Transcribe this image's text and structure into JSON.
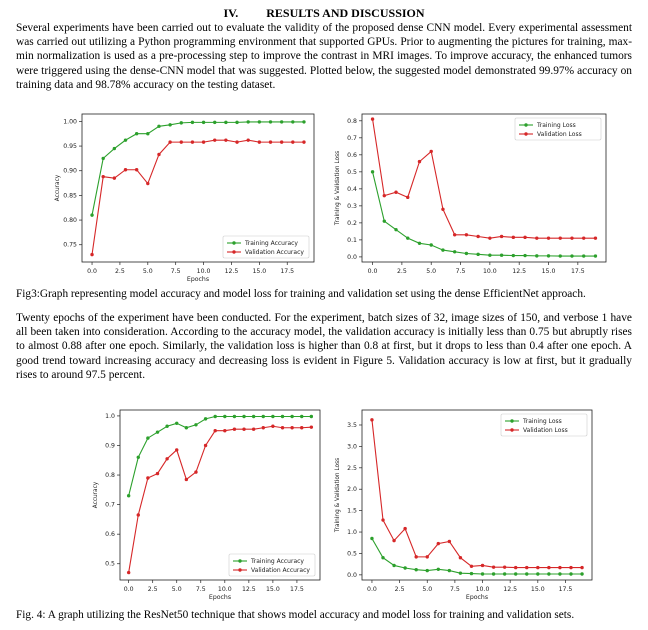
{
  "section": {
    "number": "IV.",
    "title": "RESULTS AND DISCUSSION"
  },
  "paragraph1": "Several experiments have been carried out to evaluate the validity of the proposed dense CNN model. Every experimental assessment was carried out utilizing a Python programming environment that supported GPUs. Prior to augmenting the pictures for training, max-min normalization is used as a pre-processing step to improve the contrast in MRI images. To improve accuracy, the enhanced tumors were triggered using the dense-CNN model that was suggested. Plotted below, the suggested model demonstrated 99.97% accuracy on training data and 98.78% accuracy on the testing dataset.",
  "caption1": "Fig3:Graph representing model accuracy and model loss for training and validation set using the dense EfficientNet approach.",
  "paragraph2": "Twenty epochs of the experiment have been conducted. For the experiment, batch sizes of 32, image sizes of 150, and verbose 1 have all been taken into consideration. According to the accuracy model, the validation accuracy is initially less than 0.75 but abruptly rises to almost 0.88 after one epoch. Similarly, the validation loss is higher than 0.8 at first, but it drops to less than 0.4 after one epoch. A good trend toward increasing accuracy and decreasing loss is evident in Figure 5. Validation accuracy is low at first, but it gradually rises to around 97.5 percent.",
  "caption2": "Fig. 4: A graph utilizing the ResNet50 technique that shows model accuracy and model loss for training and validation sets.",
  "colors": {
    "training": "#2ca02c",
    "validation": "#d62728"
  },
  "chart_data": [
    {
      "type": "line",
      "xlabel": "Epochs",
      "ylabel": "Accuracy",
      "xlim": [
        -0.9,
        19.9
      ],
      "ylim": [
        0.715,
        1.015
      ],
      "xticks": [
        0.0,
        2.5,
        5.0,
        7.5,
        10.0,
        12.5,
        15.0,
        17.5
      ],
      "yticks": [
        0.75,
        0.8,
        0.85,
        0.9,
        0.95,
        1.0
      ],
      "x": [
        0,
        1,
        2,
        3,
        4,
        5,
        6,
        7,
        8,
        9,
        10,
        11,
        12,
        13,
        14,
        15,
        16,
        17,
        18,
        19
      ],
      "series": [
        {
          "name": "Training Accuracy",
          "values": [
            0.81,
            0.925,
            0.945,
            0.962,
            0.975,
            0.975,
            0.99,
            0.993,
            0.997,
            0.998,
            0.998,
            0.998,
            0.998,
            0.998,
            0.999,
            0.999,
            0.999,
            0.999,
            0.999,
            0.999
          ]
        },
        {
          "name": "Validation Accuracy",
          "values": [
            0.73,
            0.888,
            0.885,
            0.902,
            0.902,
            0.874,
            0.933,
            0.958,
            0.958,
            0.958,
            0.958,
            0.962,
            0.962,
            0.958,
            0.962,
            0.958,
            0.958,
            0.958,
            0.958,
            0.958
          ]
        }
      ],
      "legend": "bottom-right",
      "grid": false
    },
    {
      "type": "line",
      "xlabel": "",
      "ylabel": "Training & Validation Loss",
      "xlim": [
        -0.9,
        19.9
      ],
      "ylim": [
        -0.03,
        0.84
      ],
      "xticks": [
        0.0,
        2.5,
        5.0,
        7.5,
        10.0,
        12.5,
        15.0,
        17.5
      ],
      "yticks": [
        0.0,
        0.1,
        0.2,
        0.3,
        0.4,
        0.5,
        0.6,
        0.7,
        0.8
      ],
      "x": [
        0,
        1,
        2,
        3,
        4,
        5,
        6,
        7,
        8,
        9,
        10,
        11,
        12,
        13,
        14,
        15,
        16,
        17,
        18,
        19
      ],
      "series": [
        {
          "name": "Training Loss",
          "values": [
            0.5,
            0.21,
            0.16,
            0.11,
            0.08,
            0.07,
            0.04,
            0.03,
            0.02,
            0.015,
            0.01,
            0.01,
            0.008,
            0.008,
            0.006,
            0.006,
            0.005,
            0.005,
            0.005,
            0.005
          ]
        },
        {
          "name": "Validation Loss",
          "values": [
            0.81,
            0.36,
            0.38,
            0.35,
            0.56,
            0.62,
            0.28,
            0.13,
            0.13,
            0.12,
            0.11,
            0.12,
            0.115,
            0.115,
            0.11,
            0.11,
            0.11,
            0.11,
            0.11,
            0.11
          ]
        }
      ],
      "legend": "top-right",
      "grid": false
    },
    {
      "type": "line",
      "xlabel": "Epochs",
      "ylabel": "Accuracy",
      "xlim": [
        -0.9,
        19.9
      ],
      "ylim": [
        0.445,
        1.02
      ],
      "xticks": [
        0.0,
        2.5,
        5.0,
        7.5,
        10.0,
        12.5,
        15.0,
        17.5
      ],
      "yticks": [
        0.5,
        0.6,
        0.7,
        0.8,
        0.9,
        1.0
      ],
      "x": [
        0,
        1,
        2,
        3,
        4,
        5,
        6,
        7,
        8,
        9,
        10,
        11,
        12,
        13,
        14,
        15,
        16,
        17,
        18,
        19
      ],
      "series": [
        {
          "name": "Training Accuracy",
          "values": [
            0.73,
            0.86,
            0.925,
            0.945,
            0.965,
            0.975,
            0.96,
            0.97,
            0.99,
            0.998,
            0.998,
            0.998,
            0.998,
            0.998,
            0.998,
            0.998,
            0.998,
            0.998,
            0.998,
            0.998
          ]
        },
        {
          "name": "Validation Accuracy",
          "values": [
            0.47,
            0.665,
            0.79,
            0.805,
            0.855,
            0.885,
            0.785,
            0.81,
            0.9,
            0.95,
            0.95,
            0.955,
            0.955,
            0.955,
            0.96,
            0.965,
            0.96,
            0.96,
            0.96,
            0.962
          ]
        }
      ],
      "legend": "bottom-right",
      "grid": false
    },
    {
      "type": "line",
      "xlabel": "Epochs",
      "ylabel": "Training & Validation Loss",
      "xlim": [
        -0.9,
        19.9
      ],
      "ylim": [
        -0.12,
        3.85
      ],
      "xticks": [
        0.0,
        2.5,
        5.0,
        7.5,
        10.0,
        12.5,
        15.0,
        17.5
      ],
      "yticks": [
        0.0,
        0.5,
        1.0,
        1.5,
        2.0,
        2.5,
        3.0,
        3.5
      ],
      "x": [
        0,
        1,
        2,
        3,
        4,
        5,
        6,
        7,
        8,
        9,
        10,
        11,
        12,
        13,
        14,
        15,
        16,
        17,
        18,
        19
      ],
      "series": [
        {
          "name": "Training Loss",
          "values": [
            0.85,
            0.4,
            0.22,
            0.16,
            0.12,
            0.1,
            0.13,
            0.1,
            0.04,
            0.03,
            0.02,
            0.02,
            0.02,
            0.02,
            0.02,
            0.02,
            0.02,
            0.02,
            0.02,
            0.02
          ]
        },
        {
          "name": "Validation Loss",
          "values": [
            3.62,
            1.28,
            0.8,
            1.08,
            0.42,
            0.42,
            0.73,
            0.78,
            0.4,
            0.2,
            0.22,
            0.18,
            0.18,
            0.17,
            0.17,
            0.17,
            0.17,
            0.17,
            0.17,
            0.17
          ]
        }
      ],
      "legend": "top-right",
      "grid": false
    }
  ]
}
